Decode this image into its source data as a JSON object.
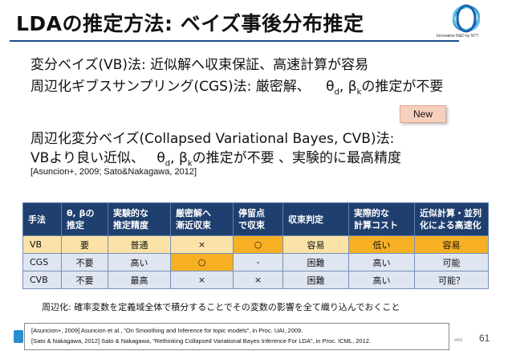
{
  "slide": {
    "title": "LDAの推定方法: ベイズ事後分布推定",
    "logo_caption": "Innovative R&D by NTT",
    "lines": [
      "変分ベイズ(VB)法: 近似解へ収束保証、高速計算が容易",
      "周辺化ギブスサンプリング(CGS)法: 厳密解、",
      "の推定が不要",
      "周辺化変分ベイズ(Collapsed Variational Bayes, CVB)法:",
      "VBより良い近似、",
      "の推定が不要 、実験的に最高精度"
    ],
    "theta_beta": {
      "theta": "θ",
      "sub_d": "d",
      "sep": ", ",
      "beta": "β",
      "sub_k": "k"
    },
    "new_badge": "New",
    "inline_citation": "[Asuncion+, 2009; Sato&Nakagawa, 2012]",
    "note": "周辺化: 確率変数を定義域全体で積分することでその変数の影響を全て織り込んでおくこと",
    "references": [
      "[Asuncion+, 2009] Asuncion et al., “On Smoothing and Inference for topic models”, in Proc. UAI, 2009.",
      "[Sato & Nakagawa, 2012] Sato & Nakagawa, “Rethinking Collapsed Variational Bayes Inference For LDA”, in Proc. ICML, 2012."
    ],
    "footer_fragment": "ved.",
    "page_number": "61"
  },
  "table": {
    "headers": [
      [
        "手法"
      ],
      [
        "θ, βの",
        "推定"
      ],
      [
        "実験的な",
        "推定精度"
      ],
      [
        "厳密解へ",
        "漸近収束"
      ],
      [
        "停留点",
        "で収束"
      ],
      [
        "収束判定"
      ],
      [
        "実際的な",
        "計算コスト"
      ],
      [
        "近似計算・並列",
        "化による高速化"
      ]
    ],
    "rows": [
      [
        "VB",
        "要",
        "普通",
        "×",
        "○",
        "容易",
        "低い",
        "容易"
      ],
      [
        "CGS",
        "不要",
        "高い",
        "○",
        "-",
        "困難",
        "高い",
        "可能"
      ],
      [
        "CVB",
        "不要",
        "最高",
        "×",
        "×",
        "困難",
        "高い",
        "可能？"
      ]
    ]
  }
}
